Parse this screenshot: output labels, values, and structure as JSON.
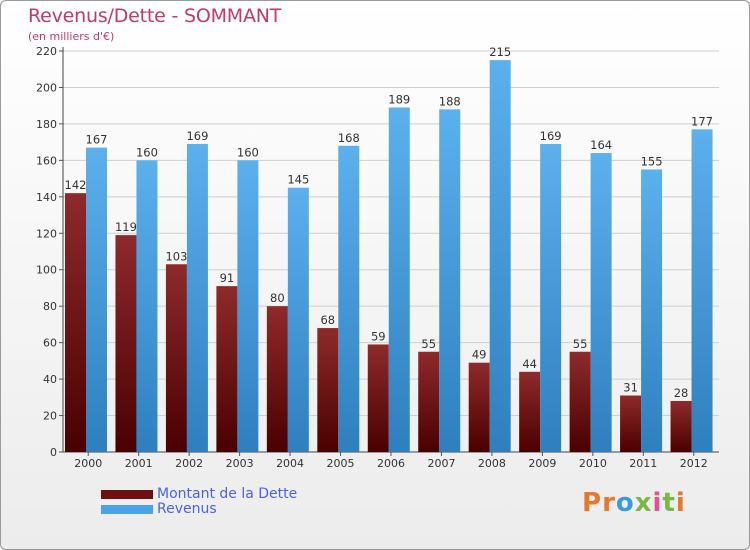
{
  "title": "Revenus/Dette - SOMMANT",
  "subtitle": "(en milliers d'€)",
  "logo": {
    "text": "Proxiti",
    "colors": [
      "#e8762c",
      "#e8762c",
      "#3b9bd6",
      "#78b843",
      "#e84f94",
      "#78b843",
      "#e8762c"
    ]
  },
  "colors": {
    "dette": "#6e0f10",
    "revenus": "#4aa3e4",
    "title": "#c33a66",
    "legend_text": "#4a62e6"
  },
  "chart_data": {
    "type": "bar",
    "title": "Revenus/Dette - SOMMANT",
    "ylabel": "(en milliers d'€)",
    "xlabel": "",
    "ylim": [
      0,
      220
    ],
    "yticks": [
      0,
      20,
      40,
      60,
      80,
      100,
      120,
      140,
      160,
      180,
      200,
      220
    ],
    "grid": true,
    "legend_position": "bottom-left",
    "categories": [
      "2000",
      "2001",
      "2002",
      "2003",
      "2004",
      "2005",
      "2006",
      "2007",
      "2008",
      "2009",
      "2010",
      "2011",
      "2012"
    ],
    "series": [
      {
        "name": "Montant de la Dette",
        "values": [
          142,
          119,
          103,
          91,
          80,
          68,
          59,
          55,
          49,
          44,
          55,
          31,
          28
        ]
      },
      {
        "name": "Revenus",
        "values": [
          167,
          160,
          169,
          160,
          145,
          168,
          189,
          188,
          215,
          169,
          164,
          155,
          177
        ]
      }
    ]
  }
}
